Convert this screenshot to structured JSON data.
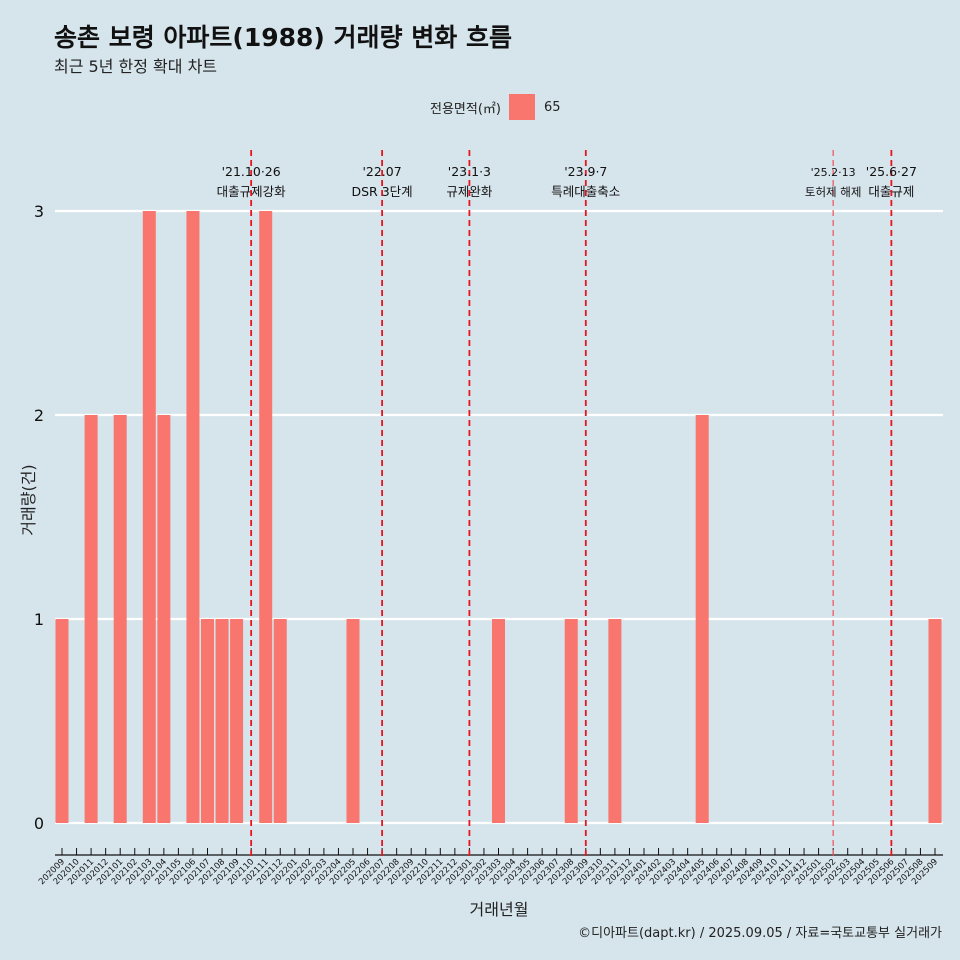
{
  "header": {
    "title": "송촌 보령 아파트(1988) 거래량 변화 흐름",
    "subtitle": "최근 5년 한정 확대 차트"
  },
  "legend": {
    "title": "전용면적(㎡)",
    "entries": [
      {
        "label": "65",
        "color": "#f8766d"
      }
    ]
  },
  "caption": "©디아파트(dapt.kr) / 2025.09.05 / 자료=국토교통부 실거래가",
  "chart_data": {
    "type": "bar",
    "title": "송촌 보령 아파트(1988) 거래량 변화 흐름",
    "xlabel": "거래년월",
    "ylabel": "거래량(건)",
    "ylim": [
      0,
      3
    ],
    "yticks": [
      0,
      1,
      2,
      3
    ],
    "categories": [
      "202009",
      "202010",
      "202011",
      "202012",
      "202101",
      "202102",
      "202103",
      "202104",
      "202105",
      "202106",
      "202107",
      "202108",
      "202109",
      "202110",
      "202111",
      "202112",
      "202201",
      "202202",
      "202203",
      "202204",
      "202205",
      "202206",
      "202207",
      "202208",
      "202209",
      "202210",
      "202211",
      "202212",
      "202301",
      "202302",
      "202303",
      "202304",
      "202305",
      "202306",
      "202307",
      "202308",
      "202309",
      "202310",
      "202311",
      "202312",
      "202401",
      "202402",
      "202403",
      "202404",
      "202405",
      "202406",
      "202407",
      "202408",
      "202409",
      "202410",
      "202411",
      "202412",
      "202501",
      "202502",
      "202503",
      "202504",
      "202505",
      "202506",
      "202507",
      "202508",
      "202509"
    ],
    "series": [
      {
        "name": "65",
        "color": "#f8766d",
        "values": [
          1,
          0,
          2,
          0,
          2,
          0,
          3,
          2,
          0,
          3,
          1,
          1,
          1,
          0,
          3,
          1,
          0,
          0,
          0,
          0,
          1,
          0,
          0,
          0,
          0,
          0,
          0,
          0,
          0,
          0,
          1,
          0,
          0,
          0,
          0,
          1,
          0,
          0,
          1,
          0,
          0,
          0,
          0,
          0,
          2,
          0,
          0,
          0,
          0,
          0,
          0,
          0,
          0,
          0,
          0,
          0,
          0,
          0,
          0,
          0,
          1
        ]
      }
    ],
    "annotations": [
      {
        "x": "202110",
        "date": "'21.10·26",
        "label": "대출규제강화",
        "style": "bold"
      },
      {
        "x": "202207",
        "date": "'22.07",
        "label": "DSR 3단계",
        "style": "bold"
      },
      {
        "x": "202301",
        "date": "'23.1·3",
        "label": "규제완화",
        "style": "bold"
      },
      {
        "x": "202309",
        "date": "'23.9·7",
        "label": "특례대출축소",
        "style": "bold"
      },
      {
        "x": "202502",
        "date": "'25.2·13",
        "label": "토허제 해제",
        "style": "light"
      },
      {
        "x": "202506",
        "date": "'25.6·27",
        "label": "대출규제",
        "style": "bold"
      }
    ]
  }
}
